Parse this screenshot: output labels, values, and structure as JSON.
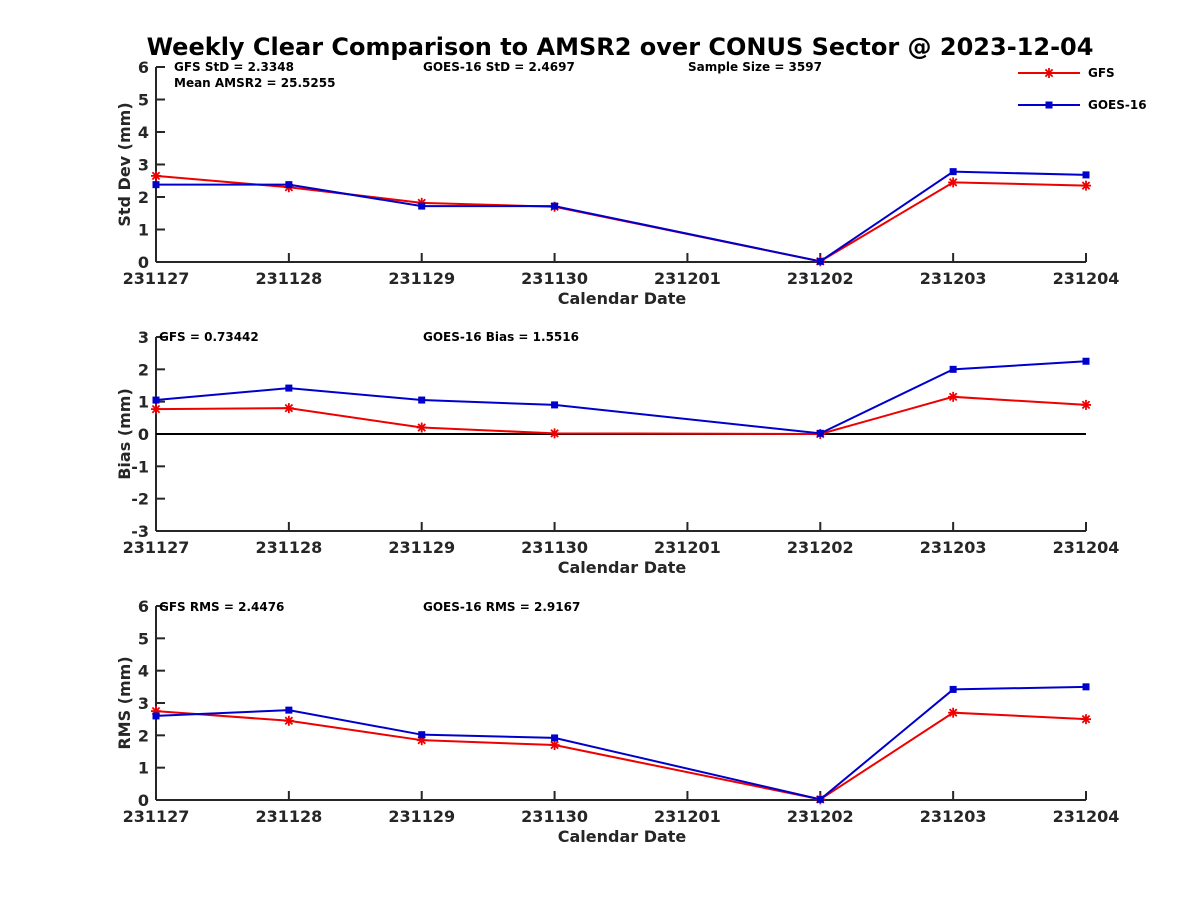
{
  "title": "Weekly Clear Comparison to AMSR2 over CONUS Sector @ 2023-12-04",
  "colors": {
    "gfs": "#ee0000",
    "goes": "#0000cc",
    "axis": "#262626",
    "zero_line": "#000000"
  },
  "legend": {
    "position": "top-right",
    "items": [
      {
        "name": "GFS",
        "marker": "asterisk",
        "color": "#ee0000"
      },
      {
        "name": "GOES-16",
        "marker": "square",
        "color": "#0000cc"
      }
    ]
  },
  "chart_data": [
    {
      "type": "line",
      "categories": [
        "231127",
        "231128",
        "231129",
        "231130",
        "231201",
        "231202",
        "231203",
        "231204"
      ],
      "xlabel": "Calendar Date",
      "ylabel": "Std Dev (mm)",
      "ylim": [
        0,
        6
      ],
      "yticks": [
        0,
        1,
        2,
        3,
        4,
        5,
        6
      ],
      "series": [
        {
          "name": "GFS",
          "values": [
            2.65,
            2.3,
            1.82,
            1.7,
            null,
            0.02,
            2.45,
            2.35
          ]
        },
        {
          "name": "GOES-16",
          "values": [
            2.38,
            2.38,
            1.72,
            1.72,
            null,
            0.02,
            2.78,
            2.68
          ]
        }
      ],
      "annotations": [
        "GFS StD = 2.3348",
        "GOES-16 StD = 2.4697",
        "Sample Size = 3597",
        "Mean AMSR2 = 25.5255"
      ]
    },
    {
      "type": "line",
      "categories": [
        "231127",
        "231128",
        "231129",
        "231130",
        "231201",
        "231202",
        "231203",
        "231204"
      ],
      "xlabel": "Calendar Date",
      "ylabel": "Bias (mm)",
      "ylim": [
        -3,
        3
      ],
      "yticks": [
        -3,
        -2,
        -1,
        0,
        1,
        2,
        3
      ],
      "zero_line": true,
      "series": [
        {
          "name": "GFS",
          "values": [
            0.77,
            0.8,
            0.2,
            0.02,
            null,
            0.0,
            1.15,
            0.9
          ]
        },
        {
          "name": "GOES-16",
          "values": [
            1.05,
            1.42,
            1.05,
            0.9,
            null,
            0.02,
            2.0,
            2.25
          ]
        }
      ],
      "annotations": [
        "GFS = 0.73442",
        "GOES-16 Bias  = 1.5516"
      ]
    },
    {
      "type": "line",
      "categories": [
        "231127",
        "231128",
        "231129",
        "231130",
        "231201",
        "231202",
        "231203",
        "231204"
      ],
      "xlabel": "Calendar Date",
      "ylabel": "RMS (mm)",
      "ylim": [
        0,
        6
      ],
      "yticks": [
        0,
        1,
        2,
        3,
        4,
        5,
        6
      ],
      "series": [
        {
          "name": "GFS",
          "values": [
            2.75,
            2.45,
            1.85,
            1.7,
            null,
            0.02,
            2.7,
            2.5
          ]
        },
        {
          "name": "GOES-16",
          "values": [
            2.6,
            2.78,
            2.02,
            1.92,
            null,
            0.02,
            3.42,
            3.5
          ]
        }
      ],
      "annotations": [
        "GFS RMS = 2.4476",
        "GOES-16 RMS = 2.9167"
      ]
    }
  ]
}
